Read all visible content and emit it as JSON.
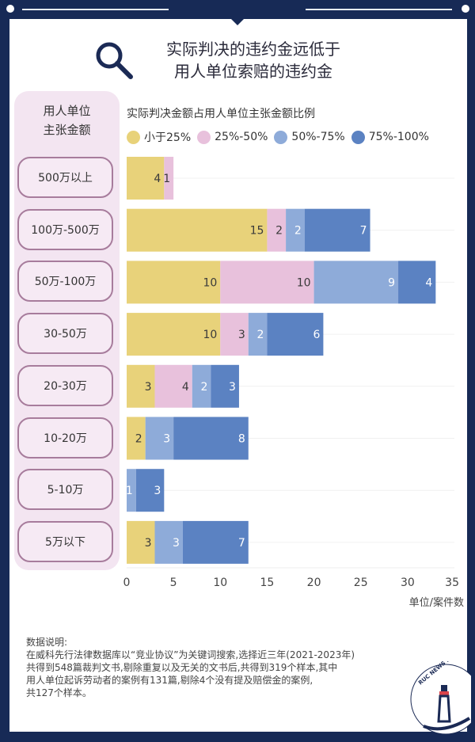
{
  "title": [
    "实际判决的违约金远低于",
    "用人单位索赔的违约金"
  ],
  "left_header": [
    "用人单位",
    "主张金额"
  ],
  "chart_data": {
    "type": "bar",
    "orientation": "horizontal",
    "stacked": true,
    "title": "实际判决金额占用人单位主张金额比例",
    "ylabel": "用人单位主张金额",
    "xlabel": "单位/案件数",
    "categories": [
      "500万以上",
      "100万-500万",
      "50万-100万",
      "30-50万",
      "20-30万",
      "10-20万",
      "5-10万",
      "5万以下"
    ],
    "series": [
      {
        "name": "小于25%",
        "color": "#e8d27a",
        "values": [
          4,
          15,
          10,
          10,
          3,
          2,
          0,
          3
        ]
      },
      {
        "name": "25%-50%",
        "color": "#e8c1dc",
        "values": [
          1,
          2,
          10,
          3,
          4,
          0,
          0,
          0
        ]
      },
      {
        "name": "50%-75%",
        "color": "#8eabd9",
        "values": [
          0,
          2,
          9,
          2,
          2,
          3,
          1,
          3
        ]
      },
      {
        "name": "75%-100%",
        "color": "#5b82c2",
        "values": [
          0,
          7,
          4,
          6,
          3,
          8,
          3,
          7
        ]
      }
    ],
    "xlim": [
      0,
      35
    ],
    "xticks": [
      0,
      5,
      10,
      15,
      20,
      25,
      30,
      35
    ],
    "legend": "top",
    "grid": true
  },
  "note": {
    "heading": "数据说明:",
    "lines": [
      "在威科先行法律数据库以“竞业协议”为关键词搜索,选择近三年(2021-2023年)",
      "共得到548篇裁判文书,剔除重复以及无关的文书后,共得到319个样本,其中",
      "用人单位起诉劳动者的案例有131篇,剔除4个没有提及赔偿金的案例,",
      "共127个样本。"
    ]
  },
  "logo_text": "RUC NEWS STUDIO",
  "icons": {
    "title_icon": "magnifier-icon",
    "logo": "lighthouse-logo"
  }
}
